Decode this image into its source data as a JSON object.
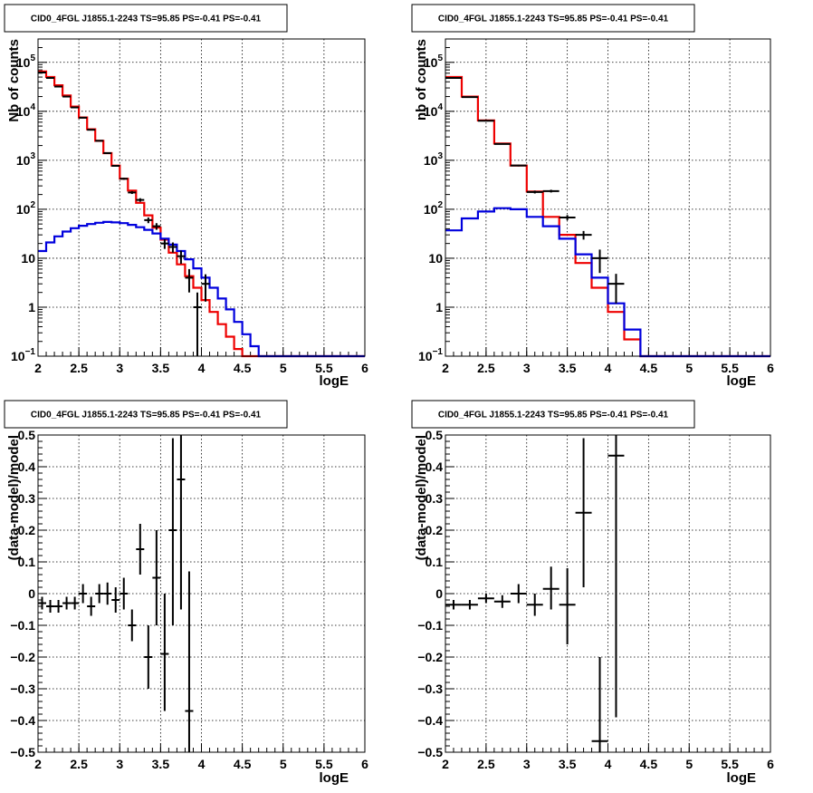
{
  "chart_data": [
    {
      "id": "tl",
      "type": "line",
      "title": "CID0_4FGL J1855.1-2243 TS=95.85 PS=-0.41 PS=-0.41",
      "xlabel": "logE",
      "ylabel": "Nb of counts",
      "xlim": [
        2,
        6
      ],
      "ylim": [
        0.1,
        300000
      ],
      "log_y": true,
      "grid": true,
      "x_ticks": [
        2,
        2.5,
        3,
        3.5,
        4,
        4.5,
        5,
        5.5,
        6
      ],
      "x_tick_labels": [
        "2",
        "2.5",
        "3",
        "3.5",
        "4",
        "4.5",
        "5",
        "5.5",
        "6"
      ],
      "y_ticks": [
        {
          "value": 0.1,
          "base": "10",
          "exp": "−1"
        },
        {
          "value": 1,
          "base": "1",
          "exp": ""
        },
        {
          "value": 10,
          "base": "10",
          "exp": ""
        },
        {
          "value": 100,
          "base": "10",
          "exp": "2"
        },
        {
          "value": 1000,
          "base": "10",
          "exp": "3"
        },
        {
          "value": 10000,
          "base": "10",
          "exp": "4"
        },
        {
          "value": 100000,
          "base": "10",
          "exp": "5"
        }
      ],
      "series": [
        {
          "color": "#ee0000",
          "style": "step",
          "bin_width": 0.1,
          "x_start": 2.0,
          "values": [
            65000,
            50000,
            34000,
            21000,
            12500,
            7500,
            4300,
            2500,
            1400,
            780,
            420,
            240,
            135,
            75,
            42,
            24,
            13,
            7.5,
            4.3,
            2.5,
            1.4,
            0.8,
            0.45,
            0.25,
            0.14,
            0.1,
            0.1,
            0.1,
            0.1,
            0.1,
            0.1,
            0.1,
            0.1,
            0.1,
            0.1,
            0.1,
            0.1,
            0.1,
            0.1,
            0.1
          ]
        },
        {
          "color": "#0000dd",
          "style": "step",
          "bin_width": 0.1,
          "x_start": 2.0,
          "values": [
            14,
            21,
            28,
            35,
            41,
            46,
            50,
            53,
            55,
            54,
            52,
            48,
            43,
            38,
            32,
            25,
            19,
            14,
            9.5,
            6.2,
            4.0,
            2.5,
            1.5,
            0.9,
            0.5,
            0.28,
            0.16,
            0.1,
            0.1,
            0.1,
            0.1,
            0.1,
            0.1,
            0.1,
            0.1,
            0.1,
            0.1,
            0.1,
            0.1,
            0.1
          ]
        }
      ],
      "points": {
        "color": "#000000",
        "x_half_width": 0.05,
        "data": [
          {
            "x": 2.05,
            "y": 62000,
            "lo": 61500,
            "hi": 62500
          },
          {
            "x": 2.15,
            "y": 48000,
            "lo": 47600,
            "hi": 48400
          },
          {
            "x": 2.25,
            "y": 32000,
            "lo": 31700,
            "hi": 32300
          },
          {
            "x": 2.35,
            "y": 20000,
            "lo": 19800,
            "hi": 20200
          },
          {
            "x": 2.45,
            "y": 12000,
            "lo": 11900,
            "hi": 12100
          },
          {
            "x": 2.55,
            "y": 7400,
            "lo": 7300,
            "hi": 7500
          },
          {
            "x": 2.65,
            "y": 4200,
            "lo": 4130,
            "hi": 4270
          },
          {
            "x": 2.75,
            "y": 2500,
            "lo": 2450,
            "hi": 2550
          },
          {
            "x": 2.85,
            "y": 1400,
            "lo": 1360,
            "hi": 1440
          },
          {
            "x": 2.95,
            "y": 770,
            "lo": 740,
            "hi": 800
          },
          {
            "x": 3.05,
            "y": 420,
            "lo": 400,
            "hi": 440
          },
          {
            "x": 3.15,
            "y": 220,
            "lo": 205,
            "hi": 235
          },
          {
            "x": 3.25,
            "y": 155,
            "lo": 142,
            "hi": 168
          },
          {
            "x": 3.35,
            "y": 60,
            "lo": 52,
            "hi": 68
          },
          {
            "x": 3.45,
            "y": 45,
            "lo": 38,
            "hi": 52
          },
          {
            "x": 3.55,
            "y": 20,
            "lo": 15.5,
            "hi": 24.5
          },
          {
            "x": 3.65,
            "y": 17,
            "lo": 13,
            "hi": 21
          },
          {
            "x": 3.75,
            "y": 11,
            "lo": 7.7,
            "hi": 14.3
          },
          {
            "x": 3.85,
            "y": 4,
            "lo": 2,
            "hi": 6
          },
          {
            "x": 3.95,
            "y": 1,
            "lo": 0.1,
            "hi": 2
          },
          {
            "x": 4.05,
            "y": 3,
            "lo": 1.3,
            "hi": 4.7
          }
        ]
      }
    },
    {
      "id": "tr",
      "type": "line",
      "title": "CID0_4FGL J1855.1-2243 TS=95.85 PS=-0.41 PS=-0.41",
      "xlabel": "logE",
      "ylabel": "nb of counts",
      "xlim": [
        2,
        6
      ],
      "ylim": [
        0.1,
        300000
      ],
      "log_y": true,
      "grid": true,
      "x_ticks": [
        2,
        2.5,
        3,
        3.5,
        4,
        4.5,
        5,
        5.5,
        6
      ],
      "x_tick_labels": [
        "2",
        "2.5",
        "3",
        "3.5",
        "4",
        "4.5",
        "5",
        "5.5",
        "6"
      ],
      "y_ticks": [
        {
          "value": 0.1,
          "base": "10",
          "exp": "−1"
        },
        {
          "value": 1,
          "base": "1",
          "exp": ""
        },
        {
          "value": 10,
          "base": "10",
          "exp": ""
        },
        {
          "value": 100,
          "base": "10",
          "exp": "2"
        },
        {
          "value": 1000,
          "base": "10",
          "exp": "3"
        },
        {
          "value": 10000,
          "base": "10",
          "exp": "4"
        },
        {
          "value": 100000,
          "base": "10",
          "exp": "5"
        }
      ],
      "series": [
        {
          "color": "#ee0000",
          "style": "step",
          "bin_width": 0.2,
          "x_start": 2.0,
          "values": [
            50000,
            20000,
            6500,
            2200,
            780,
            230,
            70,
            30,
            8,
            2.5,
            0.8,
            0.22,
            0.1,
            0.1,
            0.1,
            0.1,
            0.1,
            0.1,
            0.1,
            0.1
          ]
        },
        {
          "color": "#0000dd",
          "style": "step",
          "bin_width": 0.2,
          "x_start": 2.0,
          "values": [
            37,
            65,
            90,
            105,
            100,
            70,
            45,
            25,
            12,
            4,
            1.2,
            0.35,
            0.1,
            0.1,
            0.1,
            0.1,
            0.1,
            0.1,
            0.1,
            0.1
          ]
        }
      ],
      "points": {
        "color": "#000000",
        "x_half_width": 0.1,
        "data": [
          {
            "x": 2.1,
            "y": 48000,
            "lo": 47600,
            "hi": 48400
          },
          {
            "x": 2.3,
            "y": 19500,
            "lo": 19300,
            "hi": 19700
          },
          {
            "x": 2.5,
            "y": 6400,
            "lo": 6300,
            "hi": 6500
          },
          {
            "x": 2.7,
            "y": 2150,
            "lo": 2100,
            "hi": 2200
          },
          {
            "x": 2.9,
            "y": 780,
            "lo": 750,
            "hi": 810
          },
          {
            "x": 3.1,
            "y": 225,
            "lo": 210,
            "hi": 240
          },
          {
            "x": 3.3,
            "y": 235,
            "lo": 220,
            "hi": 250
          },
          {
            "x": 3.5,
            "y": 68,
            "lo": 60,
            "hi": 76
          },
          {
            "x": 3.7,
            "y": 30,
            "lo": 24,
            "hi": 36
          },
          {
            "x": 3.9,
            "y": 10,
            "lo": 5,
            "hi": 15
          },
          {
            "x": 4.1,
            "y": 3,
            "lo": 1.2,
            "hi": 4.8
          }
        ]
      }
    },
    {
      "id": "bl",
      "type": "scatter",
      "title": "CID0_4FGL J1855.1-2243 TS=95.85 PS=-0.41 PS=-0.41",
      "xlabel": "logE",
      "ylabel": "(data-model)/model",
      "xlim": [
        2,
        6
      ],
      "ylim": [
        -0.5,
        0.5
      ],
      "log_y": false,
      "grid": true,
      "x_ticks": [
        2,
        2.5,
        3,
        3.5,
        4,
        4.5,
        5,
        5.5,
        6
      ],
      "x_tick_labels": [
        "2",
        "2.5",
        "3",
        "3.5",
        "4",
        "4.5",
        "5",
        "5.5",
        "6"
      ],
      "y_ticks": [
        {
          "value": -0.5,
          "base": "−0.5",
          "exp": ""
        },
        {
          "value": -0.4,
          "base": "−0.4",
          "exp": ""
        },
        {
          "value": -0.3,
          "base": "−0.3",
          "exp": ""
        },
        {
          "value": -0.2,
          "base": "−0.2",
          "exp": ""
        },
        {
          "value": -0.1,
          "base": "−0.1",
          "exp": ""
        },
        {
          "value": 0,
          "base": "0",
          "exp": ""
        },
        {
          "value": 0.1,
          "base": "0.1",
          "exp": ""
        },
        {
          "value": 0.2,
          "base": "0.2",
          "exp": ""
        },
        {
          "value": 0.3,
          "base": "0.3",
          "exp": ""
        },
        {
          "value": 0.4,
          "base": "0.4",
          "exp": ""
        },
        {
          "value": 0.5,
          "base": "0.5",
          "exp": ""
        }
      ],
      "series": [],
      "points": {
        "color": "#000000",
        "x_half_width": 0.05,
        "data": [
          {
            "x": 2.05,
            "y": -0.03,
            "lo": -0.05,
            "hi": -0.01
          },
          {
            "x": 2.15,
            "y": -0.04,
            "lo": -0.06,
            "hi": -0.02
          },
          {
            "x": 2.25,
            "y": -0.04,
            "lo": -0.06,
            "hi": -0.02
          },
          {
            "x": 2.35,
            "y": -0.03,
            "lo": -0.05,
            "hi": -0.01
          },
          {
            "x": 2.45,
            "y": -0.03,
            "lo": -0.05,
            "hi": -0.01
          },
          {
            "x": 2.55,
            "y": 0.0,
            "lo": -0.03,
            "hi": 0.03
          },
          {
            "x": 2.65,
            "y": -0.04,
            "lo": -0.07,
            "hi": -0.01
          },
          {
            "x": 2.75,
            "y": 0.0,
            "lo": -0.03,
            "hi": 0.03
          },
          {
            "x": 2.85,
            "y": 0.0,
            "lo": -0.035,
            "hi": 0.035
          },
          {
            "x": 2.95,
            "y": -0.02,
            "lo": -0.06,
            "hi": 0.02
          },
          {
            "x": 3.05,
            "y": -0.0,
            "lo": -0.05,
            "hi": 0.05
          },
          {
            "x": 3.15,
            "y": -0.1,
            "lo": -0.15,
            "hi": -0.05
          },
          {
            "x": 3.25,
            "y": 0.14,
            "lo": 0.06,
            "hi": 0.22
          },
          {
            "x": 3.35,
            "y": -0.2,
            "lo": -0.3,
            "hi": -0.1
          },
          {
            "x": 3.45,
            "y": 0.05,
            "lo": -0.1,
            "hi": 0.2
          },
          {
            "x": 3.55,
            "y": -0.19,
            "lo": -0.37,
            "hi": 0.0
          },
          {
            "x": 3.65,
            "y": 0.2,
            "lo": -0.1,
            "hi": 0.49
          },
          {
            "x": 3.75,
            "y": 0.36,
            "lo": -0.05,
            "hi": 0.5
          },
          {
            "x": 3.85,
            "y": -0.37,
            "lo": -0.5,
            "hi": 0.07
          }
        ]
      }
    },
    {
      "id": "br",
      "type": "scatter",
      "title": "CID0_4FGL J1855.1-2243 TS=95.85 PS=-0.41 PS=-0.41",
      "xlabel": "logE",
      "ylabel": "(data-model)/model",
      "xlim": [
        2,
        6
      ],
      "ylim": [
        -0.5,
        0.5
      ],
      "log_y": false,
      "grid": true,
      "x_ticks": [
        2,
        2.5,
        3,
        3.5,
        4,
        4.5,
        5,
        5.5,
        6
      ],
      "x_tick_labels": [
        "2",
        "2.5",
        "3",
        "3.5",
        "4",
        "4.5",
        "5",
        "5.5",
        "6"
      ],
      "y_ticks": [
        {
          "value": -0.5,
          "base": "−0.5",
          "exp": ""
        },
        {
          "value": -0.4,
          "base": "−0.4",
          "exp": ""
        },
        {
          "value": -0.3,
          "base": "−0.3",
          "exp": ""
        },
        {
          "value": -0.2,
          "base": "−0.2",
          "exp": ""
        },
        {
          "value": -0.1,
          "base": "−0.1",
          "exp": ""
        },
        {
          "value": 0,
          "base": "0",
          "exp": ""
        },
        {
          "value": 0.1,
          "base": "0.1",
          "exp": ""
        },
        {
          "value": 0.2,
          "base": "0.2",
          "exp": ""
        },
        {
          "value": 0.3,
          "base": "0.3",
          "exp": ""
        },
        {
          "value": 0.4,
          "base": "0.4",
          "exp": ""
        },
        {
          "value": 0.5,
          "base": "0.5",
          "exp": ""
        }
      ],
      "series": [],
      "points": {
        "color": "#000000",
        "x_half_width": 0.1,
        "data": [
          {
            "x": 2.1,
            "y": -0.035,
            "lo": -0.05,
            "hi": -0.02
          },
          {
            "x": 2.3,
            "y": -0.035,
            "lo": -0.05,
            "hi": -0.02
          },
          {
            "x": 2.5,
            "y": -0.015,
            "lo": -0.03,
            "hi": 0.0
          },
          {
            "x": 2.7,
            "y": -0.025,
            "lo": -0.045,
            "hi": -0.005
          },
          {
            "x": 2.9,
            "y": 0.0,
            "lo": -0.03,
            "hi": 0.03
          },
          {
            "x": 3.1,
            "y": -0.035,
            "lo": -0.07,
            "hi": 0.0
          },
          {
            "x": 3.3,
            "y": 0.015,
            "lo": -0.05,
            "hi": 0.085
          },
          {
            "x": 3.5,
            "y": -0.035,
            "lo": -0.16,
            "hi": 0.08
          },
          {
            "x": 3.7,
            "y": 0.255,
            "lo": 0.02,
            "hi": 0.49
          },
          {
            "x": 3.9,
            "y": -0.465,
            "lo": -0.5,
            "hi": -0.2
          },
          {
            "x": 4.1,
            "y": 0.435,
            "lo": -0.39,
            "hi": 0.5
          }
        ]
      }
    }
  ]
}
